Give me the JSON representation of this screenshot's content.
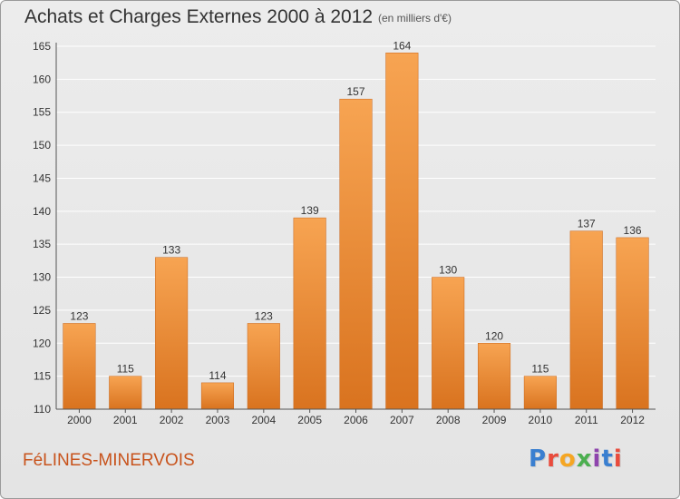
{
  "page": {
    "title": "Achats et Charges Externes 2000 à 2012",
    "subtitle": "(en milliers d'€)",
    "commune": "FéLINES-MINERVOIS",
    "logo": {
      "text": "Proxiti",
      "letter_colors": [
        "#3a7fd0",
        "#e94b3c",
        "#f5a623",
        "#4caf50",
        "#8e44ad",
        "#3a7fd0",
        "#e94b3c"
      ]
    }
  },
  "chart_data": {
    "type": "bar",
    "categories": [
      "2000",
      "2001",
      "2002",
      "2003",
      "2004",
      "2005",
      "2006",
      "2007",
      "2008",
      "2009",
      "2010",
      "2011",
      "2012"
    ],
    "values": [
      123,
      115,
      133,
      114,
      123,
      139,
      157,
      164,
      130,
      120,
      115,
      137,
      136
    ],
    "ylim": [
      110,
      165
    ],
    "yticks": [
      110,
      115,
      120,
      125,
      130,
      135,
      140,
      145,
      150,
      155,
      160,
      165
    ],
    "grid": true,
    "data_labels": true,
    "colors": {
      "bar_top": "#f7a452",
      "bar_bottom": "#d9731f",
      "grid": "#ffffff",
      "axis": "#555555"
    }
  }
}
